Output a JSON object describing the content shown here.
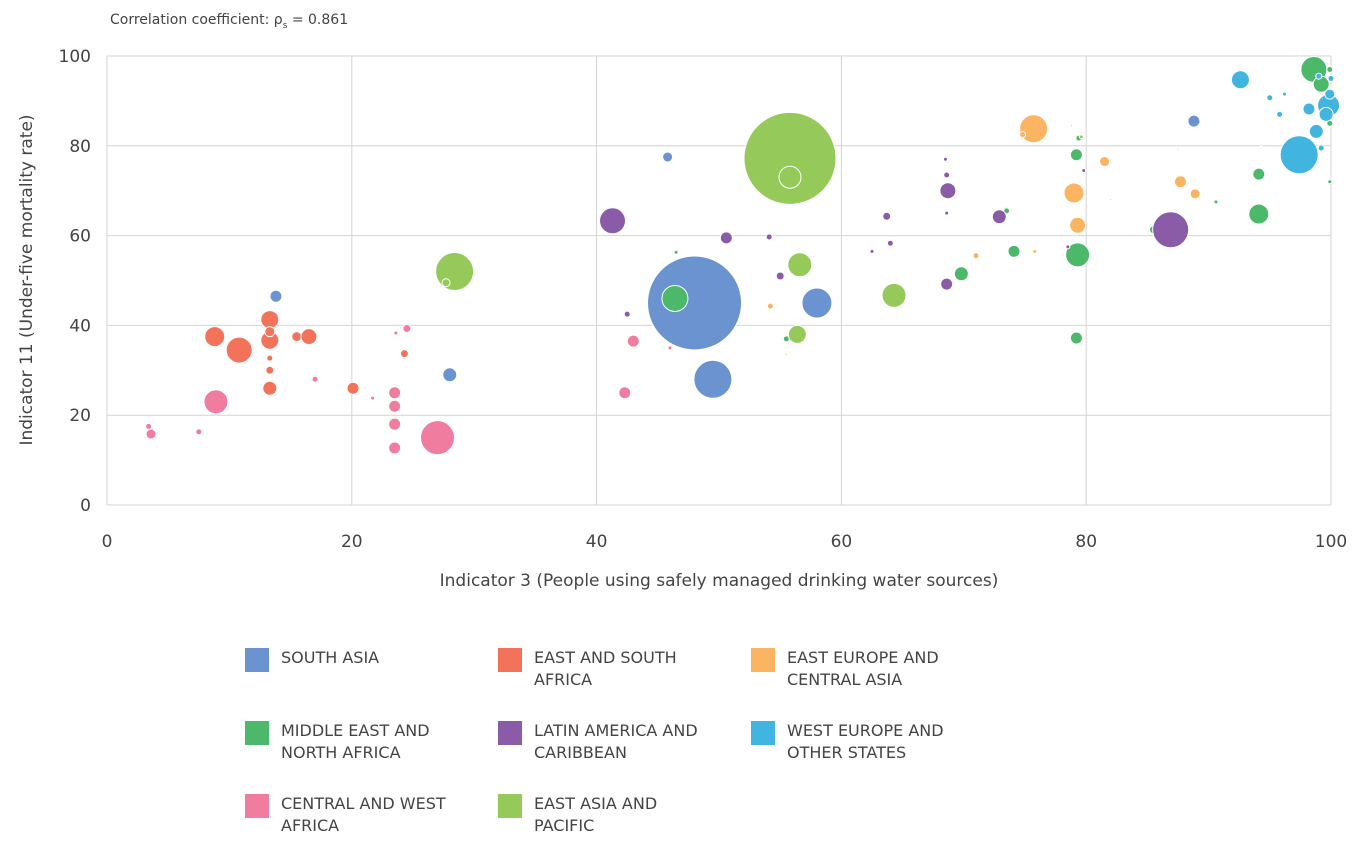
{
  "chart_data": {
    "type": "bubble",
    "annotation": {
      "prefix": "Correlation coefficient: ρ",
      "subscript": "s",
      "suffix": " = 0.861"
    },
    "x_label": "Indicator 3 (People using safely managed drinking water sources)",
    "y_label": "Indicator 11 (Under-five mortality rate)",
    "xlim": [
      0,
      100
    ],
    "xticks": [
      0,
      20,
      40,
      60,
      80,
      100
    ],
    "ylim": [
      0,
      100
    ],
    "yticks": [
      0,
      20,
      40,
      60,
      80,
      100
    ],
    "grid": true,
    "series": [
      {
        "name": "SOUTH ASIA",
        "color": "#6a93cf",
        "x": [
          13.8,
          28,
          45.8,
          48,
          49.5,
          58,
          88.8
        ],
        "values": [
          46.5,
          29,
          77.5,
          45,
          28,
          45,
          85.5
        ],
        "sizes": [
          36,
          49,
          25,
          2209,
          361,
          225,
          36
        ]
      },
      {
        "name": "EAST AND SOUTH AFRICA",
        "color": "#f2735a",
        "x": [
          8.8,
          10.8,
          13.3,
          13.3,
          13.3,
          13.3,
          13.3,
          13.3,
          15.5,
          16.5,
          20.1,
          24.3,
          17
        ],
        "values": [
          37.5,
          34.5,
          41.3,
          36.7,
          26,
          30,
          38.6,
          32.7,
          37.5,
          37.5,
          26,
          33.7,
          28.2
        ],
        "sizes": [
          100,
          169,
          81,
          81,
          49,
          16,
          25,
          9,
          25,
          64,
          36,
          16,
          9
        ]
      },
      {
        "name": "EAST EUROPE AND CENTRAL ASIA",
        "color": "#fbb562",
        "x": [
          75.7,
          74.8,
          79,
          79.3,
          81.5,
          78.8,
          71,
          75.8,
          54.2,
          88.9,
          87.7,
          87.5,
          82,
          94.3
        ],
        "values": [
          83.8,
          82.5,
          69.5,
          62.3,
          76.5,
          84.5,
          55.5,
          56.5,
          44.3,
          69.3,
          72,
          79.3,
          68,
          80.2
        ],
        "sizes": [
          196,
          9,
          100,
          64,
          25,
          1,
          9,
          4,
          9,
          25,
          36,
          1,
          1,
          1
        ]
      },
      {
        "name": "MIDDLE EAST AND NORTH AFRICA",
        "color": "#4cb86a",
        "x": [
          46.4,
          46.5,
          55.5,
          69.8,
          73.5,
          74.1,
          79.2,
          79.3,
          79.2,
          79.4,
          85.5,
          90.6,
          94.1,
          94.1,
          98.6,
          99.2,
          99.9,
          99.9,
          99.9
        ],
        "values": [
          46,
          56.3,
          37,
          51.5,
          65.5,
          56.5,
          37.2,
          55.7,
          78,
          81.7,
          61.3,
          67.5,
          73.7,
          64.8,
          97,
          93.7,
          97,
          72,
          85
        ],
        "sizes": [
          169,
          4,
          9,
          49,
          9,
          36,
          36,
          144,
          36,
          9,
          16,
          4,
          36,
          100,
          169,
          64,
          9,
          4,
          9
        ]
      },
      {
        "name": "LATIN AMERICA AND CARIBBEAN",
        "color": "#8a5ca8",
        "x": [
          41.3,
          42.5,
          50.6,
          54.1,
          55,
          63.7,
          64,
          68.7,
          68.6,
          68.5,
          68.6,
          68.6,
          72.9,
          78.5,
          79.8,
          86.9,
          62.5
        ],
        "values": [
          63.3,
          42.5,
          59.5,
          59.7,
          51,
          64.3,
          58.3,
          70,
          73.5,
          77,
          65,
          49.2,
          64.2,
          57.5,
          74.5,
          61.3,
          56.5
        ],
        "sizes": [
          169,
          9,
          36,
          9,
          16,
          16,
          9,
          64,
          9,
          4,
          4,
          36,
          49,
          4,
          4,
          324,
          4
        ]
      },
      {
        "name": "WEST EUROPE AND OTHER STATES",
        "color": "#41b4e0",
        "x": [
          92.6,
          97.4,
          98.8,
          99.8,
          99.6,
          98.2,
          99.9,
          95.8,
          95,
          96.2,
          99.2,
          100,
          99
        ],
        "values": [
          94.7,
          78,
          83.2,
          89,
          87,
          88.2,
          91.5,
          87,
          90.7,
          91.5,
          79.5,
          95,
          95.5
        ],
        "sizes": [
          81,
          361,
          49,
          121,
          49,
          36,
          25,
          9,
          9,
          4,
          9,
          9,
          9
        ]
      },
      {
        "name": "CENTRAL AND WEST AFRICA",
        "color": "#f07ca0",
        "x": [
          3.4,
          3.6,
          7.5,
          8.9,
          17,
          21.7,
          23.5,
          23.5,
          23.5,
          23.5,
          23.6,
          24.5,
          27,
          43,
          42.3,
          46
        ],
        "values": [
          17.5,
          15.8,
          16.3,
          23,
          28,
          23.8,
          25,
          22,
          18,
          12.7,
          38.3,
          39.3,
          15,
          36.5,
          25,
          35
        ],
        "sizes": [
          9,
          25,
          9,
          144,
          9,
          4,
          36,
          36,
          36,
          36,
          4,
          16,
          289,
          36,
          36,
          4
        ]
      },
      {
        "name": "EAST ASIA AND PACIFIC",
        "color": "#95c95a",
        "x": [
          28.4,
          27.7,
          55.8,
          55.8,
          56.6,
          56.4,
          64.3,
          55.5,
          79.6
        ],
        "values": [
          52,
          49.5,
          77.2,
          73,
          53.5,
          38,
          46.7,
          33.5,
          82
        ],
        "sizes": [
          361,
          16,
          2116,
          121,
          144,
          81,
          144,
          1,
          4
        ]
      }
    ]
  }
}
